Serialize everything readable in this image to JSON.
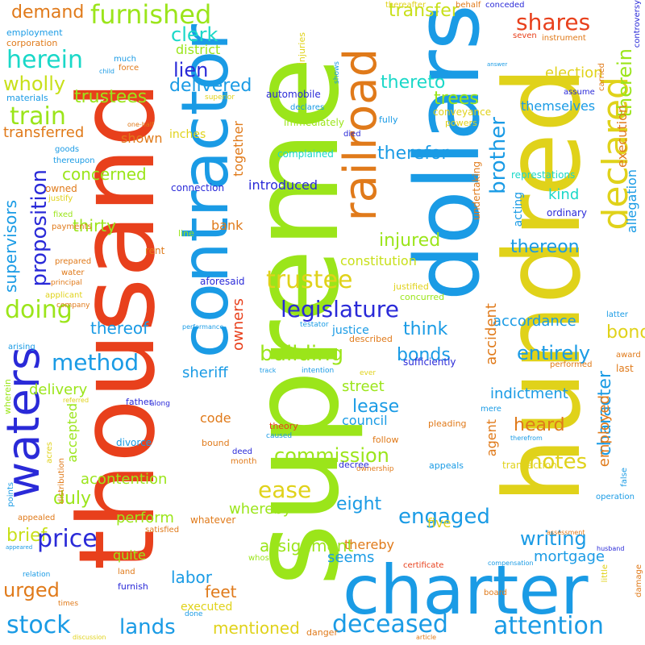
{
  "background": "#ffffff",
  "palette": [
    "#e8401c",
    "#9be51a",
    "#1a9be5",
    "#e0d21a",
    "#2a2ad8",
    "#e07a1a",
    "#1ad8c8",
    "#c8e01a"
  ],
  "words": [
    {
      "text": "supreme",
      "color": "#9be51a"
    },
    {
      "text": "thousand",
      "color": "#e8401c"
    },
    {
      "text": "hundred",
      "color": "#e0d21a"
    },
    {
      "text": "dollars",
      "color": "#1a9be5"
    },
    {
      "text": "contractor",
      "color": "#1a9be5"
    },
    {
      "text": "charter",
      "color": "#1a9be5"
    },
    {
      "text": "railroad",
      "color": "#e07a1a"
    },
    {
      "text": "declared",
      "color": "#e0d21a"
    },
    {
      "text": "waters",
      "color": "#2a2ad8"
    },
    {
      "text": "furnished",
      "color": "#9be51a"
    },
    {
      "text": "demand",
      "color": "#e07a1a"
    },
    {
      "text": "clerk",
      "color": "#1ad8c8"
    },
    {
      "text": "herein",
      "color": "#1ad8c8"
    },
    {
      "text": "district",
      "color": "#9be51a"
    },
    {
      "text": "lien",
      "color": "#2a2ad8"
    },
    {
      "text": "delivered",
      "color": "#1a9be5"
    },
    {
      "text": "wholly",
      "color": "#c8e01a"
    },
    {
      "text": "trustees",
      "color": "#9be51a"
    },
    {
      "text": "train",
      "color": "#9be51a"
    },
    {
      "text": "transferred",
      "color": "#e07a1a"
    },
    {
      "text": "transfer",
      "color": "#c8e01a"
    },
    {
      "text": "shares",
      "color": "#e8401c"
    },
    {
      "text": "therein",
      "color": "#9be51a"
    },
    {
      "text": "election",
      "color": "#e0d21a"
    },
    {
      "text": "thereto",
      "color": "#1ad8c8"
    },
    {
      "text": "trees",
      "color": "#9be51a"
    },
    {
      "text": "themselves",
      "color": "#1a9be5"
    },
    {
      "text": "brother",
      "color": "#1a9be5"
    },
    {
      "text": "therefor",
      "color": "#1a9be5"
    },
    {
      "text": "proposition",
      "color": "#2a2ad8"
    },
    {
      "text": "concerned",
      "color": "#9be51a"
    },
    {
      "text": "method",
      "color": "#1a9be5"
    },
    {
      "text": "doing",
      "color": "#9be51a"
    },
    {
      "text": "thirty",
      "color": "#9be51a"
    },
    {
      "text": "supervisors",
      "color": "#1a9be5"
    },
    {
      "text": "injured",
      "color": "#9be51a"
    },
    {
      "text": "thereon",
      "color": "#1a9be5"
    },
    {
      "text": "constitution",
      "color": "#c8e01a"
    },
    {
      "text": "trustee",
      "color": "#e0d21a"
    },
    {
      "text": "legislature",
      "color": "#2a2ad8"
    },
    {
      "text": "think",
      "color": "#1a9be5"
    },
    {
      "text": "accordance",
      "color": "#1a9be5"
    },
    {
      "text": "bond",
      "color": "#e0d21a"
    },
    {
      "text": "justice",
      "color": "#1a9be5"
    },
    {
      "text": "thereof",
      "color": "#1a9be5"
    },
    {
      "text": "building",
      "color": "#9be51a"
    },
    {
      "text": "entirely",
      "color": "#1a9be5"
    },
    {
      "text": "bonds",
      "color": "#1a9be5"
    },
    {
      "text": "sheriff",
      "color": "#1a9be5"
    },
    {
      "text": "owners",
      "color": "#e8401c"
    },
    {
      "text": "together",
      "color": "#e07a1a"
    },
    {
      "text": "bank",
      "color": "#e07a1a"
    },
    {
      "text": "kind",
      "color": "#1ad8c8"
    },
    {
      "text": "indictment",
      "color": "#1a9be5"
    },
    {
      "text": "character",
      "color": "#1a9be5"
    },
    {
      "text": "employed",
      "color": "#e07a1a"
    },
    {
      "text": "heard",
      "color": "#e07a1a"
    },
    {
      "text": "street",
      "color": "#9be51a"
    },
    {
      "text": "lease",
      "color": "#1a9be5"
    },
    {
      "text": "council",
      "color": "#1a9be5"
    },
    {
      "text": "accident",
      "color": "#e07a1a"
    },
    {
      "text": "agent",
      "color": "#e07a1a"
    },
    {
      "text": "delivery",
      "color": "#9be51a"
    },
    {
      "text": "accepted",
      "color": "#9be51a"
    },
    {
      "text": "code",
      "color": "#e07a1a"
    },
    {
      "text": "commission",
      "color": "#9be51a"
    },
    {
      "text": "notes",
      "color": "#e0d21a"
    },
    {
      "text": "ease",
      "color": "#e0d21a"
    },
    {
      "text": "eight",
      "color": "#1a9be5"
    },
    {
      "text": "acontention",
      "color": "#9be51a"
    },
    {
      "text": "duly",
      "color": "#9be51a"
    },
    {
      "text": "whereby",
      "color": "#9be51a"
    },
    {
      "text": "brief",
      "color": "#c8e01a"
    },
    {
      "text": "price",
      "color": "#2a2ad8"
    },
    {
      "text": "perform",
      "color": "#9be51a"
    },
    {
      "text": "engaged",
      "color": "#1a9be5"
    },
    {
      "text": "assignment",
      "color": "#9be51a"
    },
    {
      "text": "writing",
      "color": "#1a9be5"
    },
    {
      "text": "mortgage",
      "color": "#1a9be5"
    },
    {
      "text": "seems",
      "color": "#1a9be5"
    },
    {
      "text": "thereby",
      "color": "#e07a1a"
    },
    {
      "text": "five",
      "color": "#e0d21a"
    },
    {
      "text": "quite",
      "color": "#9be51a"
    },
    {
      "text": "urged",
      "color": "#e07a1a"
    },
    {
      "text": "labor",
      "color": "#1a9be5"
    },
    {
      "text": "feet",
      "color": "#e07a1a"
    },
    {
      "text": "stock",
      "color": "#1a9be5"
    },
    {
      "text": "lands",
      "color": "#1a9be5"
    },
    {
      "text": "mentioned",
      "color": "#e0d21a"
    },
    {
      "text": "deceased",
      "color": "#1a9be5"
    },
    {
      "text": "attention",
      "color": "#1a9be5"
    },
    {
      "text": "executed",
      "color": "#e0d21a"
    },
    {
      "text": "represtations",
      "color": "#1ad8c8"
    },
    {
      "text": "acting",
      "color": "#1a9be5"
    },
    {
      "text": "allegation",
      "color": "#1a9be5"
    },
    {
      "text": "execution",
      "color": "#e07a1a"
    },
    {
      "text": "employment",
      "color": "#1a9be5"
    },
    {
      "text": "corporation",
      "color": "#e07a1a"
    },
    {
      "text": "materials",
      "color": "#1a9be5"
    },
    {
      "text": "injuries",
      "color": "#e0d21a"
    },
    {
      "text": "automobile",
      "color": "#2a2ad8"
    },
    {
      "text": "immediately",
      "color": "#9be51a"
    },
    {
      "text": "conveyance",
      "color": "#e0d21a"
    },
    {
      "text": "complained",
      "color": "#1ad8c8"
    },
    {
      "text": "introduced",
      "color": "#2a2ad8"
    },
    {
      "text": "connection",
      "color": "#2a2ad8"
    },
    {
      "text": "inches",
      "color": "#e0d21a"
    },
    {
      "text": "shown",
      "color": "#e07a1a"
    },
    {
      "text": "ordinary",
      "color": "#2a2ad8"
    },
    {
      "text": "undertaking",
      "color": "#e07a1a"
    },
    {
      "text": "aforesaid",
      "color": "#2a2ad8"
    },
    {
      "text": "sufficiently",
      "color": "#2a2ad8"
    },
    {
      "text": "performance",
      "color": "#1a9be5"
    },
    {
      "text": "testator",
      "color": "#1a9be5"
    },
    {
      "text": "described",
      "color": "#e07a1a"
    },
    {
      "text": "justified",
      "color": "#e0d21a"
    },
    {
      "text": "concurred",
      "color": "#9be51a"
    },
    {
      "text": "intention",
      "color": "#1a9be5"
    },
    {
      "text": "ever",
      "color": "#e0d21a"
    },
    {
      "text": "performed",
      "color": "#e07a1a"
    },
    {
      "text": "pleading",
      "color": "#e07a1a"
    },
    {
      "text": "ownership",
      "color": "#e07a1a"
    },
    {
      "text": "appeals",
      "color": "#1a9be5"
    },
    {
      "text": "decree",
      "color": "#2a2ad8"
    },
    {
      "text": "follow",
      "color": "#e07a1a"
    },
    {
      "text": "transaction",
      "color": "#e0d21a"
    },
    {
      "text": "operation",
      "color": "#1a9be5"
    },
    {
      "text": "assessment",
      "color": "#e07a1a"
    },
    {
      "text": "certificate",
      "color": "#e8401c"
    },
    {
      "text": "compensation",
      "color": "#1a9be5"
    },
    {
      "text": "husband",
      "color": "#2a2ad8"
    },
    {
      "text": "board",
      "color": "#e07a1a"
    },
    {
      "text": "damage",
      "color": "#e07a1a"
    },
    {
      "text": "little",
      "color": "#e0d21a"
    },
    {
      "text": "discussion",
      "color": "#e0d21a"
    },
    {
      "text": "article",
      "color": "#e07a1a"
    },
    {
      "text": "danger",
      "color": "#e07a1a"
    },
    {
      "text": "done",
      "color": "#1a9be5"
    },
    {
      "text": "times",
      "color": "#e07a1a"
    },
    {
      "text": "furnish",
      "color": "#2a2ad8"
    },
    {
      "text": "relation",
      "color": "#1a9be5"
    },
    {
      "text": "appeared",
      "color": "#1a9be5"
    },
    {
      "text": "land",
      "color": "#e07a1a"
    },
    {
      "text": "whose",
      "color": "#9be51a"
    },
    {
      "text": "whatever",
      "color": "#e07a1a"
    },
    {
      "text": "satisfied",
      "color": "#e07a1a"
    },
    {
      "text": "appealed",
      "color": "#e07a1a"
    },
    {
      "text": "points",
      "color": "#1a9be5"
    },
    {
      "text": "acres",
      "color": "#e0d21a"
    },
    {
      "text": "distribution",
      "color": "#e07a1a"
    },
    {
      "text": "bound",
      "color": "#e07a1a"
    },
    {
      "text": "deed",
      "color": "#2a2ad8"
    },
    {
      "text": "month",
      "color": "#e07a1a"
    },
    {
      "text": "divorce",
      "color": "#1a9be5"
    },
    {
      "text": "theory",
      "color": "#e8401c"
    },
    {
      "text": "caused",
      "color": "#1a9be5"
    },
    {
      "text": "father",
      "color": "#2a2ad8"
    },
    {
      "text": "along",
      "color": "#2a2ad8"
    },
    {
      "text": "referred",
      "color": "#e0d21a"
    },
    {
      "text": "wherein",
      "color": "#9be51a"
    },
    {
      "text": "arising",
      "color": "#1a9be5"
    },
    {
      "text": "track",
      "color": "#1a9be5"
    },
    {
      "text": "therefrom",
      "color": "#1a9be5"
    },
    {
      "text": "mere",
      "color": "#1a9be5"
    },
    {
      "text": "last",
      "color": "#e07a1a"
    },
    {
      "text": "award",
      "color": "#e07a1a"
    },
    {
      "text": "latter",
      "color": "#1a9be5"
    },
    {
      "text": "false",
      "color": "#1a9be5"
    },
    {
      "text": "company",
      "color": "#e07a1a"
    },
    {
      "text": "principal",
      "color": "#e07a1a"
    },
    {
      "text": "applicant",
      "color": "#e0d21a"
    },
    {
      "text": "water",
      "color": "#e07a1a"
    },
    {
      "text": "prepared",
      "color": "#e07a1a"
    },
    {
      "text": "payments",
      "color": "#e07a1a"
    },
    {
      "text": "fixed",
      "color": "#9be51a"
    },
    {
      "text": "owned",
      "color": "#e07a1a"
    },
    {
      "text": "justify",
      "color": "#e0d21a"
    },
    {
      "text": "goods",
      "color": "#1a9be5"
    },
    {
      "text": "thereupon",
      "color": "#1a9be5"
    },
    {
      "text": "much",
      "color": "#1a9be5"
    },
    {
      "text": "force",
      "color": "#e07a1a"
    },
    {
      "text": "child",
      "color": "#1a9be5"
    },
    {
      "text": "one-half",
      "color": "#e07a1a"
    },
    {
      "text": "superior",
      "color": "#e0d21a"
    },
    {
      "text": "declares",
      "color": "#1a9be5"
    },
    {
      "text": "fully",
      "color": "#1a9be5"
    },
    {
      "text": "powers",
      "color": "#e0d21a"
    },
    {
      "text": "died",
      "color": "#2a2ad8"
    },
    {
      "text": "shows",
      "color": "#1a9be5"
    },
    {
      "text": "carried",
      "color": "#e07a1a"
    },
    {
      "text": "assume",
      "color": "#2a2ad8"
    },
    {
      "text": "answer",
      "color": "#1a9be5"
    },
    {
      "text": "seven",
      "color": "#e8401c"
    },
    {
      "text": "instrument",
      "color": "#e07a1a"
    },
    {
      "text": "thereafter",
      "color": "#e0d21a"
    },
    {
      "text": "behalf",
      "color": "#e07a1a"
    },
    {
      "text": "conceded",
      "color": "#2a2ad8"
    },
    {
      "text": "controversy",
      "color": "#2a2ad8"
    },
    {
      "text": "rent",
      "color": "#e07a1a"
    },
    {
      "text": "line",
      "color": "#9be51a"
    }
  ]
}
